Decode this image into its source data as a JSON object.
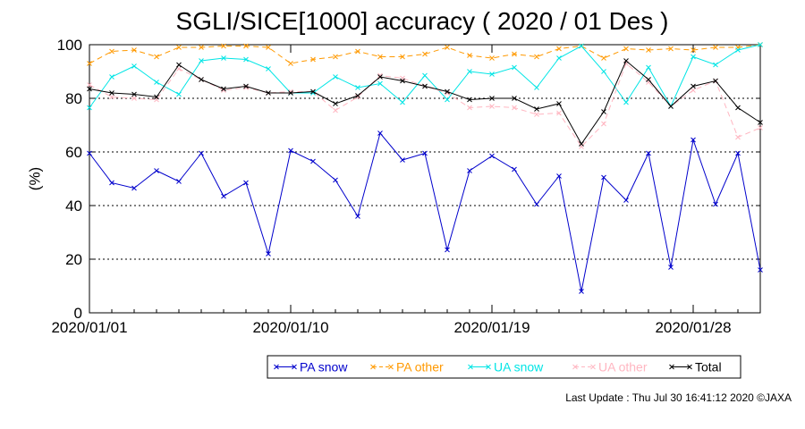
{
  "chart_data": {
    "type": "line",
    "title": "SGLI/SICE[1000] accuracy ( 2020 / 01 Des )",
    "ylabel": "(%)",
    "xlabel": "",
    "ylim": [
      0,
      100
    ],
    "yticks": [
      0,
      20,
      40,
      60,
      80,
      100
    ],
    "grid": "horizontal dotted at 20, 40, 60, 80",
    "legend_position": "bottom",
    "x": [
      "2020/01/01",
      "2020/01/02",
      "2020/01/03",
      "2020/01/04",
      "2020/01/05",
      "2020/01/06",
      "2020/01/07",
      "2020/01/08",
      "2020/01/09",
      "2020/01/10",
      "2020/01/11",
      "2020/01/12",
      "2020/01/13",
      "2020/01/14",
      "2020/01/15",
      "2020/01/16",
      "2020/01/17",
      "2020/01/18",
      "2020/01/19",
      "2020/01/20",
      "2020/01/21",
      "2020/01/22",
      "2020/01/23",
      "2020/01/24",
      "2020/01/25",
      "2020/01/26",
      "2020/01/27",
      "2020/01/28",
      "2020/01/29",
      "2020/01/30",
      "2020/01/31"
    ],
    "xtick_labels": [
      "2020/01/01",
      "2020/01/10",
      "2020/01/19",
      "2020/01/28"
    ],
    "series": [
      {
        "name": "PA snow",
        "color": "#0000cc",
        "dash": "none",
        "values": [
          59.5,
          48.5,
          46.5,
          53,
          49,
          59.5,
          43.5,
          48.5,
          22,
          60.5,
          56.5,
          49.5,
          36,
          67,
          57,
          59.5,
          23.5,
          53,
          58.5,
          53.5,
          40.5,
          51,
          8,
          50.5,
          42,
          59.5,
          17,
          64.5,
          40.5,
          59.5,
          16
        ]
      },
      {
        "name": "PA other",
        "color": "#ff9900",
        "dash": "6,4",
        "values": [
          93,
          97.5,
          98,
          95.5,
          99,
          99,
          99.5,
          99.5,
          99,
          93,
          94.5,
          95.5,
          97.5,
          95.5,
          95.5,
          96.5,
          99,
          96,
          95,
          96.5,
          95.5,
          98.5,
          99.5,
          95,
          98.5,
          98,
          98.5,
          98,
          99,
          99,
          100
        ]
      },
      {
        "name": "UA snow",
        "color": "#00e5e5",
        "dash": "none",
        "values": [
          76.5,
          88,
          92,
          86,
          81.5,
          94,
          95,
          94.5,
          91,
          82,
          82,
          88,
          84,
          85.5,
          78.5,
          88.5,
          79.5,
          90,
          89,
          91.5,
          84,
          95,
          99.5,
          90,
          78.5,
          91.5,
          77,
          95.5,
          92.5,
          98,
          100
        ]
      },
      {
        "name": "UA other",
        "color": "#ffb6c1",
        "dash": "6,4",
        "values": [
          85,
          80.5,
          80,
          79.5,
          91,
          87,
          83,
          84,
          82,
          82.5,
          82.5,
          75.5,
          80.5,
          88.5,
          87.5,
          84.5,
          82,
          76.5,
          77,
          76.5,
          74,
          74.5,
          62,
          70.5,
          93,
          86,
          77,
          83,
          86.5,
          65.5,
          69
        ]
      },
      {
        "name": "Total",
        "color": "#000000",
        "dash": "none",
        "values": [
          83.5,
          82,
          81.5,
          80.5,
          92.5,
          87,
          83.5,
          84.5,
          82,
          82,
          82.5,
          78,
          81,
          88,
          86.5,
          84.5,
          82.5,
          79.5,
          80,
          80,
          76,
          78,
          63,
          75,
          94,
          87,
          77,
          84.5,
          86.5,
          76.5,
          71
        ]
      }
    ]
  },
  "footer": {
    "last_update": "Last Update : Thu Jul 30 16:41:12 2020  ©JAXA"
  }
}
